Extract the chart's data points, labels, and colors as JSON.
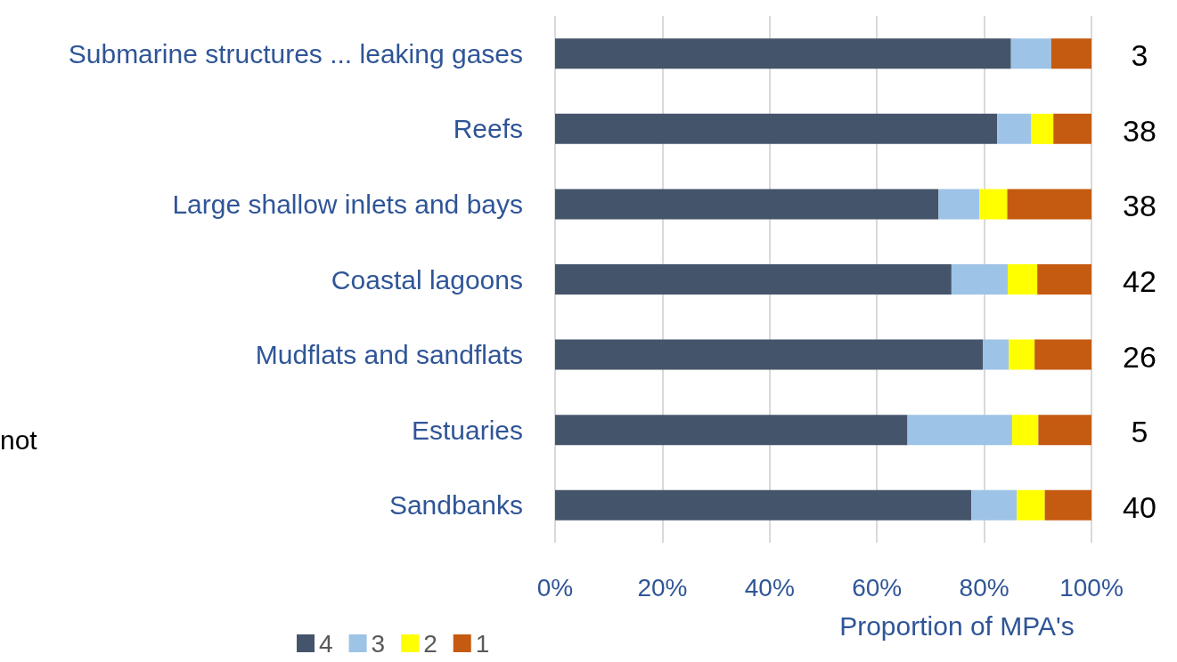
{
  "chart_data": {
    "type": "bar",
    "orientation": "horizontal",
    "stacked": true,
    "xlabel": "Proportion of MPA's",
    "categories": [
      "Submarine structures ... leaking gases",
      "Reefs",
      "Large shallow inlets and bays",
      "Coastal lagoons",
      "Mudflats and sandflats",
      "Estuaries",
      "Sandbanks"
    ],
    "series": [
      {
        "name": "4",
        "color": "#44546a",
        "values": [
          85,
          82.4,
          71.5,
          73.9,
          79.8,
          65.7,
          77.6
        ]
      },
      {
        "name": "3",
        "color": "#9dc3e6",
        "values": [
          7.5,
          6.4,
          7.6,
          10.5,
          4.8,
          19.5,
          8.5
        ]
      },
      {
        "name": "2",
        "color": "#ffff00",
        "values": [
          0,
          4.1,
          5.2,
          5.5,
          4.8,
          4.9,
          5.2
        ]
      },
      {
        "name": "1",
        "color": "#c55a11",
        "values": [
          7.5,
          7.1,
          15.7,
          10.1,
          10.6,
          9.9,
          8.7
        ]
      }
    ],
    "xlim": [
      0,
      100
    ],
    "xticks": [
      {
        "value": 0,
        "label": "0%"
      },
      {
        "value": 20,
        "label": "20%"
      },
      {
        "value": 40,
        "label": "40%"
      },
      {
        "value": 60,
        "label": "60%"
      },
      {
        "value": 80,
        "label": "80%"
      },
      {
        "value": 100,
        "label": "100%"
      }
    ],
    "grid": "x",
    "legend": "bottom left",
    "annotations": [
      "3",
      "38",
      "38",
      "42",
      "26",
      "5",
      "40",
      "not"
    ]
  }
}
